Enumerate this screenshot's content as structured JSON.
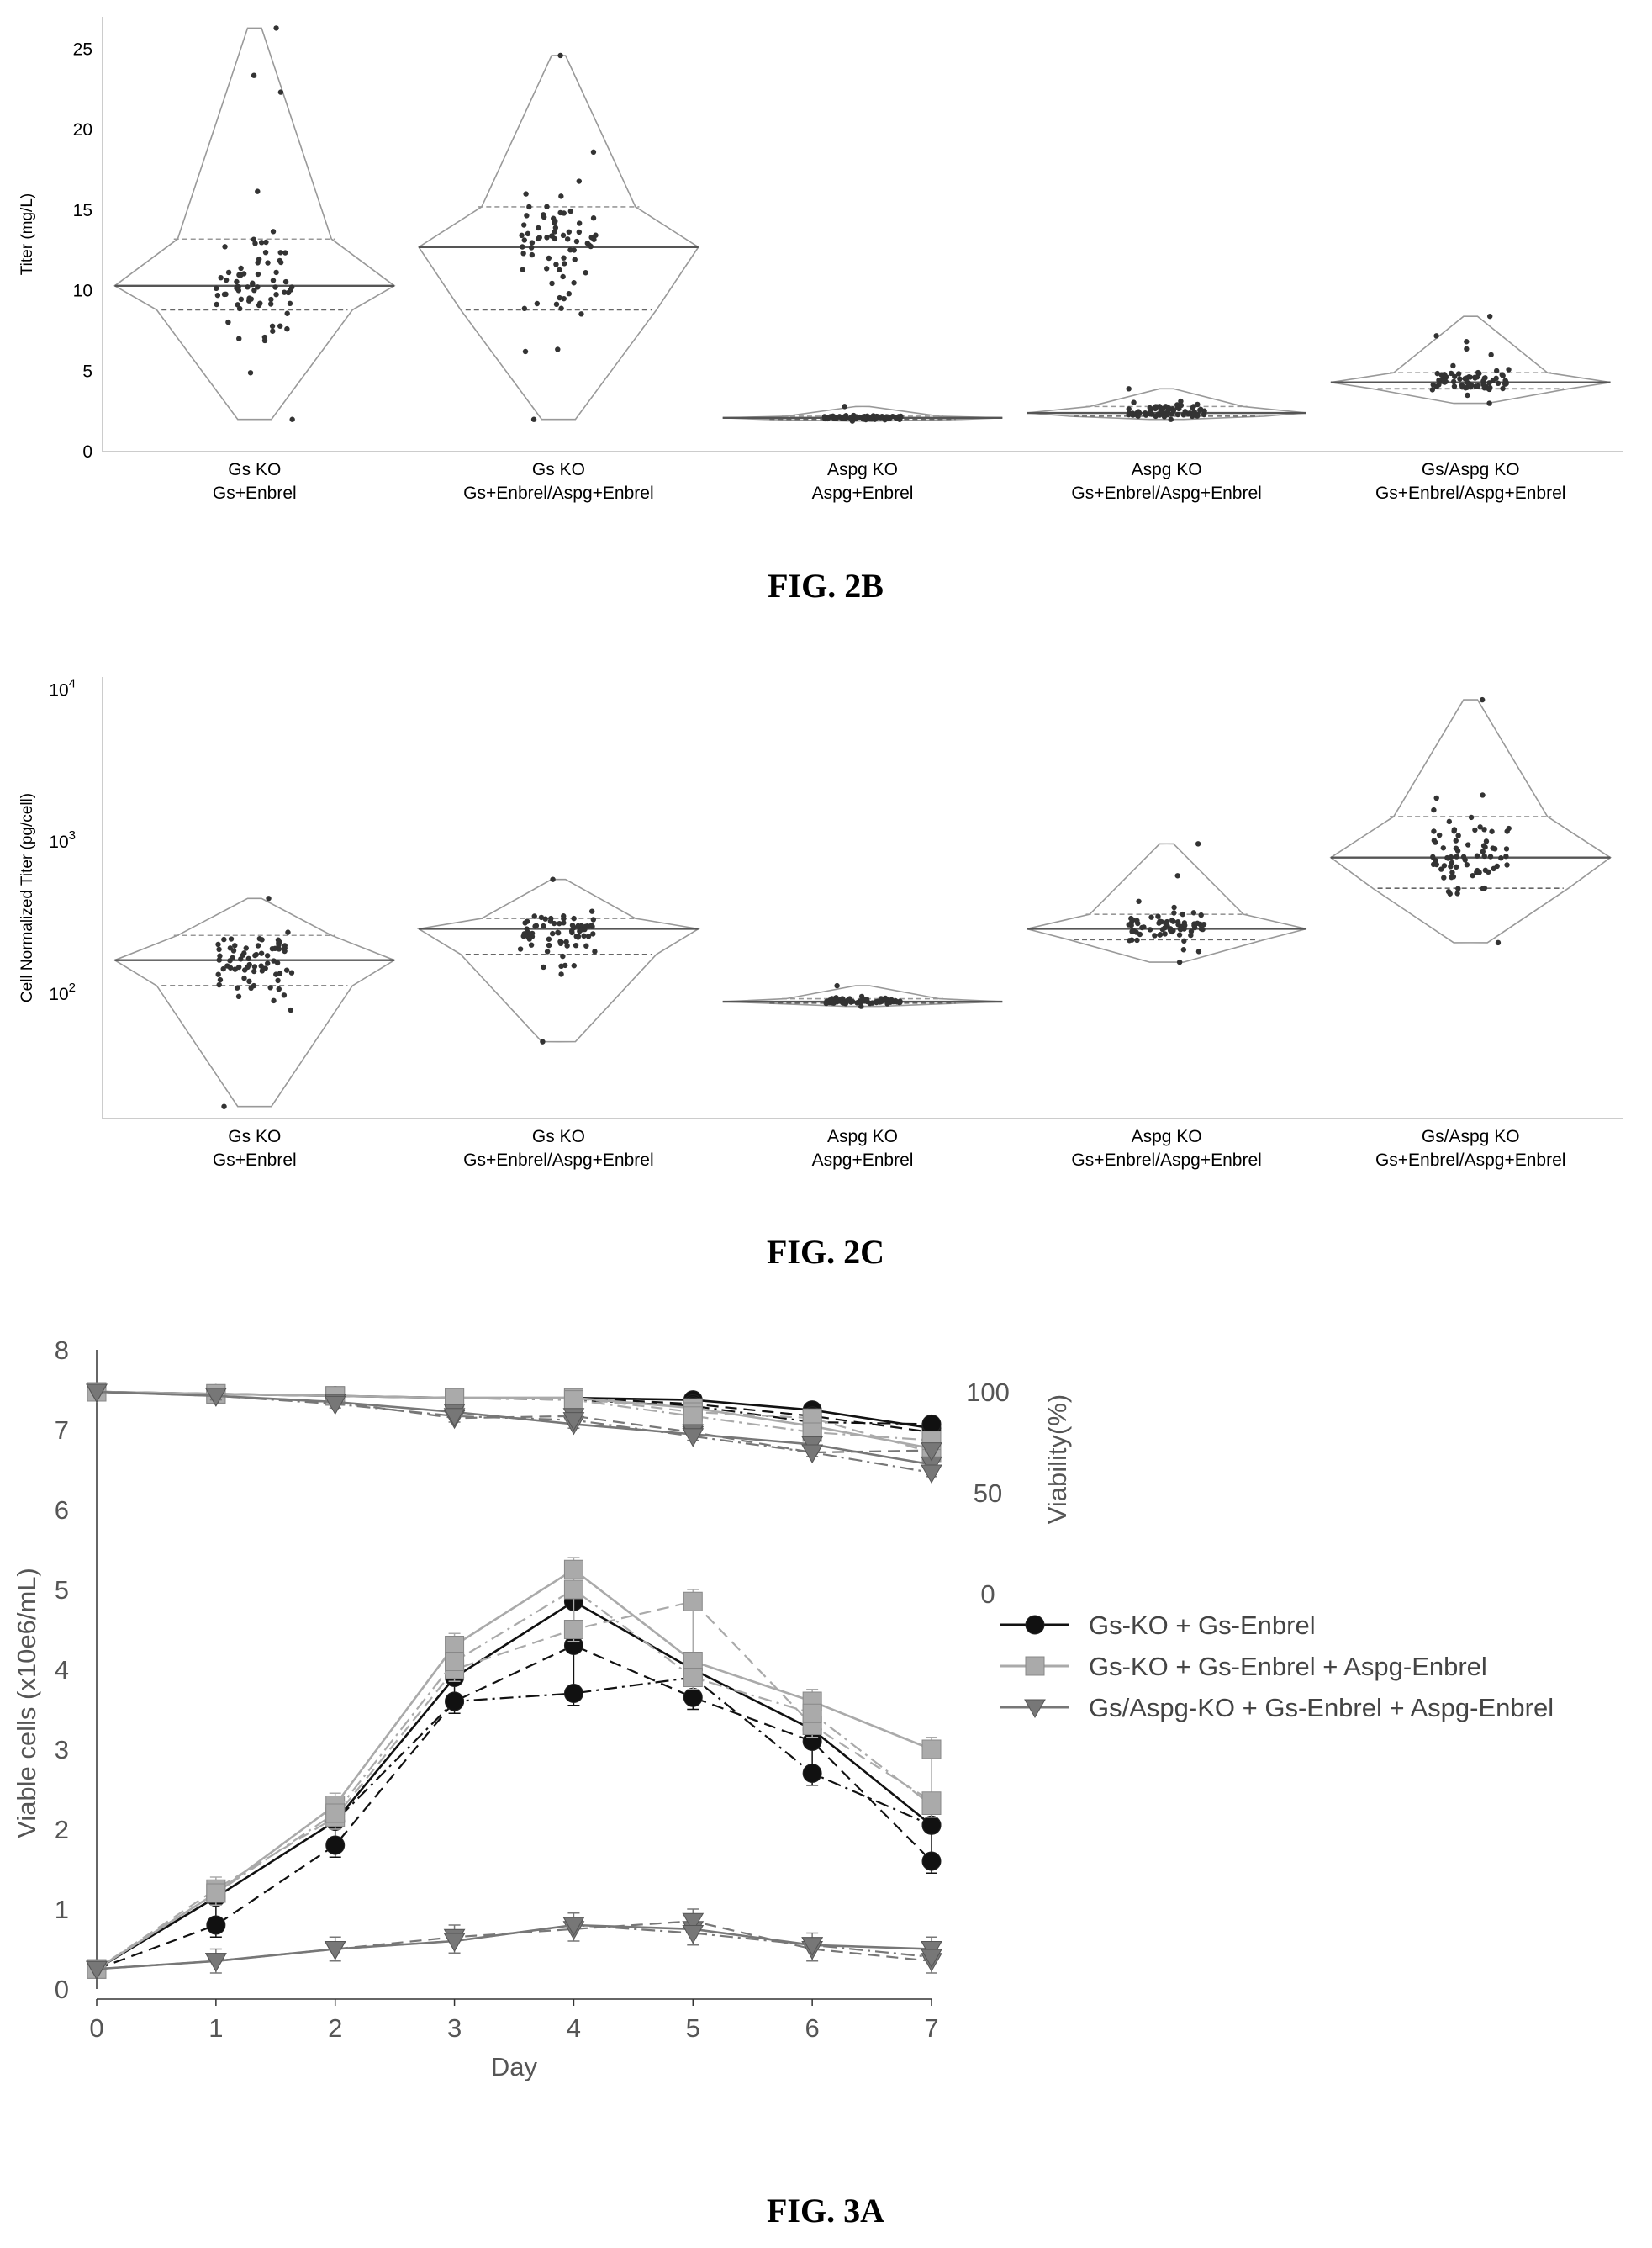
{
  "figures": {
    "fig2b": {
      "caption": "FIG. 2B",
      "ylabel": "Titer (mg/L)",
      "yticks": [
        "0",
        "5",
        "10",
        "15",
        "20",
        "25"
      ],
      "categories": [
        {
          "line1": "Gs KO",
          "line2": "Gs+Enbrel"
        },
        {
          "line1": "Gs KO",
          "line2": "Gs+Enbrel/Aspg+Enbrel"
        },
        {
          "line1": "Aspg KO",
          "line2": "Aspg+Enbrel"
        },
        {
          "line1": "Aspg KO",
          "line2": "Gs+Enbrel/Aspg+Enbrel"
        },
        {
          "line1": "Gs/Aspg KO",
          "line2": "Gs+Enbrel/Aspg+Enbrel"
        }
      ]
    },
    "fig2c": {
      "caption": "FIG. 2C",
      "ylabel": "Cell Normalized Titer (pg/cell)",
      "ytick_base": "10",
      "ytick_exps": [
        "2",
        "3",
        "4"
      ],
      "categories": [
        {
          "line1": "Gs KO",
          "line2": "Gs+Enbrel"
        },
        {
          "line1": "Gs KO",
          "line2": "Gs+Enbrel/Aspg+Enbrel"
        },
        {
          "line1": "Aspg KO",
          "line2": "Aspg+Enbrel"
        },
        {
          "line1": "Aspg KO",
          "line2": "Gs+Enbrel/Aspg+Enbrel"
        },
        {
          "line1": "Gs/Aspg KO",
          "line2": "Gs+Enbrel/Aspg+Enbrel"
        }
      ]
    },
    "fig3a": {
      "caption": "FIG. 3A",
      "xlabel": "Day",
      "ylabel": "Viable cells (x10e6/mL)",
      "y2label": "Viability(%)",
      "xticks": [
        "0",
        "1",
        "2",
        "3",
        "4",
        "5",
        "6",
        "7"
      ],
      "yticks": [
        "0",
        "1",
        "2",
        "3",
        "4",
        "5",
        "6",
        "7",
        "8"
      ],
      "y2ticks": [
        "0",
        "50",
        "100"
      ],
      "legend": [
        "Gs-KO + Gs-Enbrel",
        "Gs-KO + Gs-Enbrel + Aspg-Enbrel",
        "Gs/Aspg-KO + Gs-Enbrel + Aspg-Enbrel"
      ]
    }
  },
  "chart_data": [
    {
      "type": "violin",
      "title": "",
      "ylabel": "Titer (mg/L)",
      "ylim": [
        0,
        27
      ],
      "categories": [
        "Gs KO Gs+Enbrel",
        "Gs KO Gs+Enbrel/Aspg+Enbrel",
        "Aspg KO Aspg+Enbrel",
        "Aspg KO Gs+Enbrel/Aspg+Enbrel",
        "Gs/Aspg KO Gs+Enbrel/Aspg+Enbrel"
      ],
      "stats": [
        {
          "min": 2.0,
          "q1": 8.8,
          "median": 10.3,
          "q3": 13.2,
          "max": 26.3
        },
        {
          "min": 2.0,
          "q1": 8.8,
          "median": 12.7,
          "q3": 15.2,
          "max": 24.6
        },
        {
          "min": 1.9,
          "q1": 2.0,
          "median": 2.1,
          "q3": 2.2,
          "max": 2.8
        },
        {
          "min": 2.0,
          "q1": 2.2,
          "median": 2.4,
          "q3": 2.8,
          "max": 3.9
        },
        {
          "min": 3.0,
          "q1": 3.9,
          "median": 4.3,
          "q3": 4.9,
          "max": 8.4
        }
      ]
    },
    {
      "type": "violin",
      "title": "",
      "ylabel": "Cell Normalized Titer (pg/cell)",
      "yscale": "log",
      "ylim": [
        15,
        12000
      ],
      "categories": [
        "Gs KO Gs+Enbrel",
        "Gs KO Gs+Enbrel/Aspg+Enbrel",
        "Aspg KO Aspg+Enbrel",
        "Aspg KO Gs+Enbrel/Aspg+Enbrel",
        "Gs/Aspg KO Gs+Enbrel/Aspg+Enbrel"
      ],
      "stats": [
        {
          "min": 18,
          "q1": 112,
          "median": 165,
          "q3": 240,
          "max": 420
        },
        {
          "min": 48,
          "q1": 180,
          "median": 265,
          "q3": 310,
          "max": 560
        },
        {
          "min": 82,
          "q1": 86,
          "median": 88,
          "q3": 92,
          "max": 112
        },
        {
          "min": 160,
          "q1": 225,
          "median": 265,
          "q3": 330,
          "max": 960
        },
        {
          "min": 215,
          "q1": 490,
          "median": 780,
          "q3": 1450,
          "max": 8500
        }
      ]
    },
    {
      "type": "line",
      "title": "",
      "xlabel": "Day",
      "ylabel": "Viable cells (x10e6/mL)",
      "y2label": "Viability(%)",
      "x": [
        0,
        1,
        2,
        3,
        4,
        5,
        6,
        7
      ],
      "ylim": [
        0,
        8
      ],
      "xlim": [
        0,
        7
      ],
      "legend_position": "right",
      "series": [
        {
          "name": "Gs-KO + Gs-Enbrel",
          "axis": "viable",
          "color": "#111111",
          "marker": "circle",
          "replicates": [
            [
              0.25,
              1.15,
              2.1,
              3.9,
              4.85,
              4.0,
              3.25,
              2.05
            ],
            [
              0.25,
              0.8,
              1.8,
              3.6,
              4.3,
              3.65,
              3.1,
              1.6
            ],
            [
              0.25,
              1.15,
              2.1,
              3.6,
              3.7,
              3.9,
              2.7,
              2.05
            ]
          ]
        },
        {
          "name": "Gs-KO + Gs-Enbrel + Aspg-Enbrel",
          "axis": "viable",
          "color": "#aaaaaa",
          "marker": "square",
          "replicates": [
            [
              0.25,
              1.2,
              2.3,
              4.3,
              5.25,
              4.1,
              3.6,
              3.0
            ],
            [
              0.25,
              1.25,
              2.15,
              4.0,
              4.5,
              4.85,
              3.3,
              2.35
            ],
            [
              0.25,
              1.2,
              2.2,
              4.1,
              5.0,
              3.9,
              3.45,
              2.3
            ]
          ]
        },
        {
          "name": "Gs/Aspg-KO + Gs-Enbrel + Aspg-Enbrel",
          "axis": "viable",
          "color": "#777777",
          "marker": "triangle-down",
          "replicates": [
            [
              0.25,
              0.35,
              0.5,
              0.6,
              0.8,
              0.75,
              0.55,
              0.5
            ],
            [
              0.25,
              0.35,
              0.5,
              0.65,
              0.75,
              0.85,
              0.5,
              0.35
            ],
            [
              0.25,
              0.35,
              0.5,
              0.6,
              0.8,
              0.7,
              0.55,
              0.4
            ]
          ]
        },
        {
          "name": "Gs-KO + Gs-Enbrel",
          "axis": "viability",
          "color": "#111111",
          "marker": "circle",
          "replicates": [
            [
              100,
              99,
              98,
              97,
              97,
              96,
              91,
              82
            ],
            [
              100,
              99,
              98,
              97,
              97,
              94,
              88,
              80
            ],
            [
              100,
              99,
              98,
              97,
              96,
              93,
              85,
              84
            ]
          ]
        },
        {
          "name": "Gs-KO + Gs-Enbrel + Aspg-Enbrel",
          "axis": "viability",
          "color": "#aaaaaa",
          "marker": "square",
          "replicates": [
            [
              100,
              99,
              98,
              97,
              97,
              92,
              83,
              72
            ],
            [
              100,
              99,
              98,
              97,
              97,
              90,
              87,
              70
            ],
            [
              100,
              99,
              98,
              97,
              96,
              88,
              80,
              76
            ]
          ]
        },
        {
          "name": "Gs/Aspg-KO + Gs-Enbrel + Aspg-Enbrel",
          "axis": "viability",
          "color": "#777777",
          "marker": "triangle-down",
          "replicates": [
            [
              100,
              98,
              95,
              90,
              84,
              79,
              74,
              64
            ],
            [
              100,
              98,
              95,
              87,
              88,
              80,
              70,
              71
            ],
            [
              100,
              98,
              94,
              88,
              86,
              78,
              70,
              60
            ]
          ]
        }
      ]
    }
  ]
}
